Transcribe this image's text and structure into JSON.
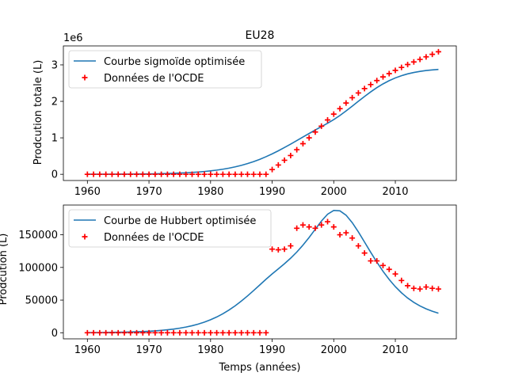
{
  "chart_data": [
    {
      "type": "line",
      "title": "EU28",
      "xlabel": "",
      "ylabel": "Prodcution totale (L)",
      "offset_text": "1e6",
      "xlim": [
        1956.1,
        2019.9
      ],
      "ylim": [
        -0.17,
        3.52
      ],
      "xticks": [
        1960,
        1970,
        1980,
        1990,
        2000,
        2010
      ],
      "xtick_labels": [
        "1960",
        "1970",
        "1980",
        "1990",
        "2000",
        "2010"
      ],
      "yticks": [
        0,
        1,
        2,
        3
      ],
      "ytick_labels": [
        "0",
        "1",
        "2",
        "3"
      ],
      "grid": false,
      "legend_position": "upper-left",
      "colors": {
        "fit": "#1f77b4",
        "data": "#ff0000"
      },
      "series": [
        {
          "name": "Courbe sigmoïde optimisée",
          "style": "line",
          "x": [
            1960,
            1961,
            1962,
            1963,
            1964,
            1965,
            1966,
            1967,
            1968,
            1969,
            1970,
            1971,
            1972,
            1973,
            1974,
            1975,
            1976,
            1977,
            1978,
            1979,
            1980,
            1981,
            1982,
            1983,
            1984,
            1985,
            1986,
            1987,
            1988,
            1989,
            1990,
            1991,
            1992,
            1993,
            1994,
            1995,
            1996,
            1997,
            1998,
            1999,
            2000,
            2001,
            2002,
            2003,
            2004,
            2005,
            2006,
            2007,
            2008,
            2009,
            2010,
            2011,
            2012,
            2013,
            2014,
            2015,
            2016,
            2017
          ],
          "y": [
            0.0014,
            0.0018,
            0.0022,
            0.0027,
            0.0034,
            0.0042,
            0.0052,
            0.0064,
            0.0078,
            0.0097,
            0.0119,
            0.0147,
            0.0181,
            0.0223,
            0.0275,
            0.0338,
            0.0416,
            0.0511,
            0.0627,
            0.0768,
            0.0939,
            0.1145,
            0.1393,
            0.1689,
            0.204,
            0.2454,
            0.2935,
            0.3489,
            0.4118,
            0.4823,
            0.56,
            0.6442,
            0.734,
            0.828,
            0.9245,
            1.022,
            1.119,
            1.214,
            1.307,
            1.4,
            1.5,
            1.6128,
            1.7368,
            1.8682,
            2.0022,
            2.1342,
            2.2597,
            2.3754,
            2.4785,
            2.5676,
            2.6425,
            2.7038,
            2.7532,
            2.792,
            2.8222,
            2.8452,
            2.8628,
            2.876
          ]
        },
        {
          "name": "Données de l'OCDE",
          "style": "marker",
          "x": [
            1960,
            1961,
            1962,
            1963,
            1964,
            1965,
            1966,
            1967,
            1968,
            1969,
            1970,
            1971,
            1972,
            1973,
            1974,
            1975,
            1976,
            1977,
            1978,
            1979,
            1980,
            1981,
            1982,
            1983,
            1984,
            1985,
            1986,
            1987,
            1988,
            1989,
            1990,
            1991,
            1992,
            1993,
            1994,
            1995,
            1996,
            1997,
            1998,
            1999,
            2000,
            2001,
            2002,
            2003,
            2004,
            2005,
            2006,
            2007,
            2008,
            2009,
            2010,
            2011,
            2012,
            2013,
            2014,
            2015,
            2016,
            2017
          ],
          "y": [
            0,
            0,
            0,
            0,
            0,
            0,
            0,
            0,
            0,
            0,
            0,
            0,
            0,
            0,
            0,
            0,
            0,
            0,
            0,
            0,
            0,
            0,
            0,
            0,
            0,
            0,
            0,
            0,
            0,
            0,
            0.13,
            0.255,
            0.385,
            0.515,
            0.675,
            0.84,
            1.0,
            1.16,
            1.32,
            1.49,
            1.65,
            1.8,
            1.955,
            2.1,
            2.23,
            2.35,
            2.46,
            2.57,
            2.67,
            2.76,
            2.85,
            2.93,
            3.01,
            3.08,
            3.15,
            3.22,
            3.29,
            3.36
          ]
        }
      ]
    },
    {
      "type": "line",
      "title": "",
      "xlabel": "Temps (années)",
      "ylabel": "Prodcution (L)",
      "xlim": [
        1956.1,
        2019.9
      ],
      "ylim": [
        -9300,
        195500
      ],
      "xticks": [
        1960,
        1970,
        1980,
        1990,
        2000,
        2010
      ],
      "xtick_labels": [
        "1960",
        "1970",
        "1980",
        "1990",
        "2000",
        "2010"
      ],
      "yticks": [
        0,
        50000,
        100000,
        150000
      ],
      "ytick_labels": [
        "0",
        "50000",
        "100000",
        "150000"
      ],
      "grid": false,
      "legend_position": "upper-left",
      "colors": {
        "fit": "#1f77b4",
        "data": "#ff0000"
      },
      "series": [
        {
          "name": "Courbe de Hubbert optimisée",
          "style": "line",
          "x": [
            1960,
            1961,
            1962,
            1963,
            1964,
            1965,
            1966,
            1967,
            1968,
            1969,
            1970,
            1971,
            1972,
            1973,
            1974,
            1975,
            1976,
            1977,
            1978,
            1979,
            1980,
            1981,
            1982,
            1983,
            1984,
            1985,
            1986,
            1987,
            1988,
            1989,
            1990,
            1991,
            1992,
            1993,
            1994,
            1995,
            1996,
            1997,
            1998,
            1999,
            2000,
            2001,
            2002,
            2003,
            2004,
            2005,
            2006,
            2007,
            2008,
            2009,
            2010,
            2011,
            2012,
            2013,
            2014,
            2015,
            2016,
            2017
          ],
          "y": [
            240,
            300,
            380,
            480,
            610,
            760,
            950,
            1190,
            1490,
            1870,
            2340,
            2920,
            3650,
            4560,
            5670,
            7040,
            8730,
            10790,
            13290,
            16300,
            19890,
            24140,
            29110,
            34840,
            41320,
            48530,
            56370,
            64690,
            73290,
            81860,
            90030,
            97790,
            105660,
            114130,
            123540,
            134110,
            145870,
            158470,
            170990,
            181420,
            187200,
            186620,
            179990,
            168620,
            154360,
            138840,
            123190,
            108100,
            94110,
            81560,
            70540,
            61140,
            53200,
            46560,
            41090,
            36590,
            32920,
            29930
          ]
        },
        {
          "name": "Données de l'OCDE",
          "style": "marker",
          "x": [
            1960,
            1961,
            1962,
            1963,
            1964,
            1965,
            1966,
            1967,
            1968,
            1969,
            1970,
            1971,
            1972,
            1973,
            1974,
            1975,
            1976,
            1977,
            1978,
            1979,
            1980,
            1981,
            1982,
            1983,
            1984,
            1985,
            1986,
            1987,
            1988,
            1989,
            1990,
            1991,
            1992,
            1993,
            1994,
            1995,
            1996,
            1997,
            1998,
            1999,
            2000,
            2001,
            2002,
            2003,
            2004,
            2005,
            2006,
            2007,
            2008,
            2009,
            2010,
            2011,
            2012,
            2013,
            2014,
            2015,
            2016,
            2017
          ],
          "y": [
            0,
            0,
            0,
            0,
            0,
            0,
            0,
            0,
            0,
            0,
            0,
            0,
            0,
            0,
            0,
            0,
            0,
            0,
            0,
            0,
            0,
            0,
            0,
            0,
            0,
            0,
            0,
            0,
            0,
            0,
            128000,
            127000,
            128000,
            133000,
            160000,
            165000,
            162000,
            160000,
            165000,
            170000,
            162000,
            150000,
            153000,
            145000,
            133000,
            122000,
            110000,
            110000,
            103000,
            97000,
            90000,
            80000,
            72000,
            68000,
            67000,
            70000,
            68000,
            67000
          ]
        }
      ]
    }
  ]
}
